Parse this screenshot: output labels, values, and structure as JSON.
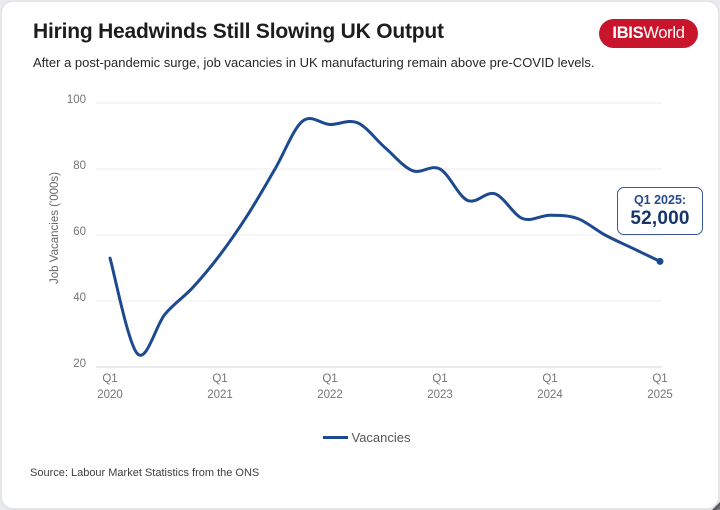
{
  "header": {
    "title": "Hiring Headwinds Still Slowing UK Output",
    "subtitle": "After a post-pandemic surge, job vacancies in UK manufacturing remain above pre-COVID levels.",
    "logo": {
      "bold": "IBIS",
      "regular": "World",
      "bg_color": "#c9152b",
      "text_color": "#ffffff"
    }
  },
  "callout": {
    "label": "Q1 2025:",
    "value": "52,000"
  },
  "legend": {
    "label": "Vacancies"
  },
  "footer": {
    "source": "Source: Labour Market Statistics from the ONS"
  },
  "chart_data": {
    "type": "line",
    "title": "Hiring Headwinds Still Slowing UK Output",
    "xlabel": "",
    "ylabel": "Job Vacancies ('000s)",
    "ylim": [
      20,
      100
    ],
    "yticks": [
      20,
      40,
      60,
      80,
      100
    ],
    "grid": true,
    "legend_position": "bottom",
    "x": [
      "Q1 2020",
      "Q2 2020",
      "Q3 2020",
      "Q4 2020",
      "Q1 2021",
      "Q2 2021",
      "Q3 2021",
      "Q4 2021",
      "Q1 2022",
      "Q2 2022",
      "Q3 2022",
      "Q4 2022",
      "Q1 2023",
      "Q2 2023",
      "Q3 2023",
      "Q4 2023",
      "Q1 2024",
      "Q2 2024",
      "Q3 2024",
      "Q4 2024",
      "Q1 2025"
    ],
    "x_ticks": [
      {
        "quarter": "Q1",
        "year": "2020"
      },
      {
        "quarter": "Q1",
        "year": "2021"
      },
      {
        "quarter": "Q1",
        "year": "2022"
      },
      {
        "quarter": "Q1",
        "year": "2023"
      },
      {
        "quarter": "Q1",
        "year": "2024"
      },
      {
        "quarter": "Q1",
        "year": "2025"
      }
    ],
    "series": [
      {
        "name": "Vacancies",
        "values": [
          53,
          24,
          36,
          44,
          54,
          66,
          80,
          94.5,
          93.5,
          94,
          86.5,
          79.5,
          80,
          70.5,
          72.5,
          65,
          66,
          65,
          60,
          56,
          52
        ]
      }
    ],
    "annotation": {
      "label": "Q1 2025:",
      "value": "52,000",
      "x": "Q1 2025",
      "y": 52000
    },
    "line_color": "#1d4a8f",
    "end_marker": true
  }
}
